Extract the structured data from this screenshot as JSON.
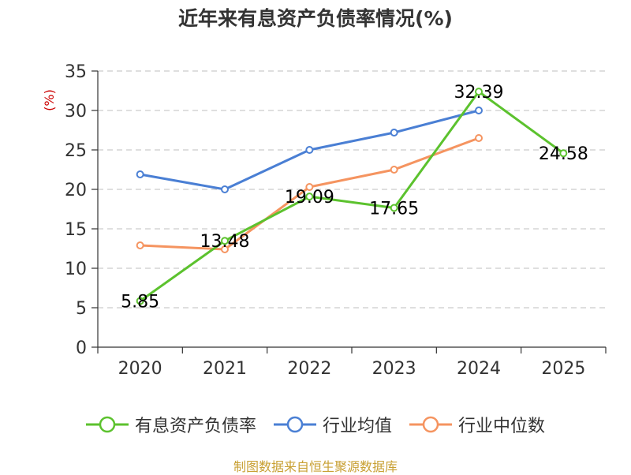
{
  "title": "近年来有息资产负债率情况(%)",
  "source": "制图数据来自恒生聚源数据库",
  "chart_data": {
    "type": "line",
    "title": "近年来有息资产负债率情况(%)",
    "ylabel": "(%)",
    "xlabel": "",
    "categories": [
      "2020",
      "2021",
      "2022",
      "2023",
      "2024",
      "2025"
    ],
    "ylim": [
      0,
      35
    ],
    "yticks": [
      0,
      5,
      10,
      15,
      20,
      25,
      30,
      35
    ],
    "grid": true,
    "legend_position": "bottom",
    "series": [
      {
        "name": "有息资产负债率",
        "color": "#5cc22e",
        "values": [
          5.85,
          13.48,
          19.09,
          17.65,
          32.39,
          24.58
        ],
        "data_labels": [
          "5.85",
          "13.48",
          "19.09",
          "17.65",
          "32.39",
          "24.58"
        ]
      },
      {
        "name": "行业均值",
        "color": "#4a7fd4",
        "values": [
          21.9,
          20.0,
          25.0,
          27.2,
          30.0,
          null
        ]
      },
      {
        "name": "行业中位数",
        "color": "#f59460",
        "values": [
          12.9,
          12.4,
          20.3,
          22.5,
          26.5,
          null
        ]
      }
    ]
  }
}
